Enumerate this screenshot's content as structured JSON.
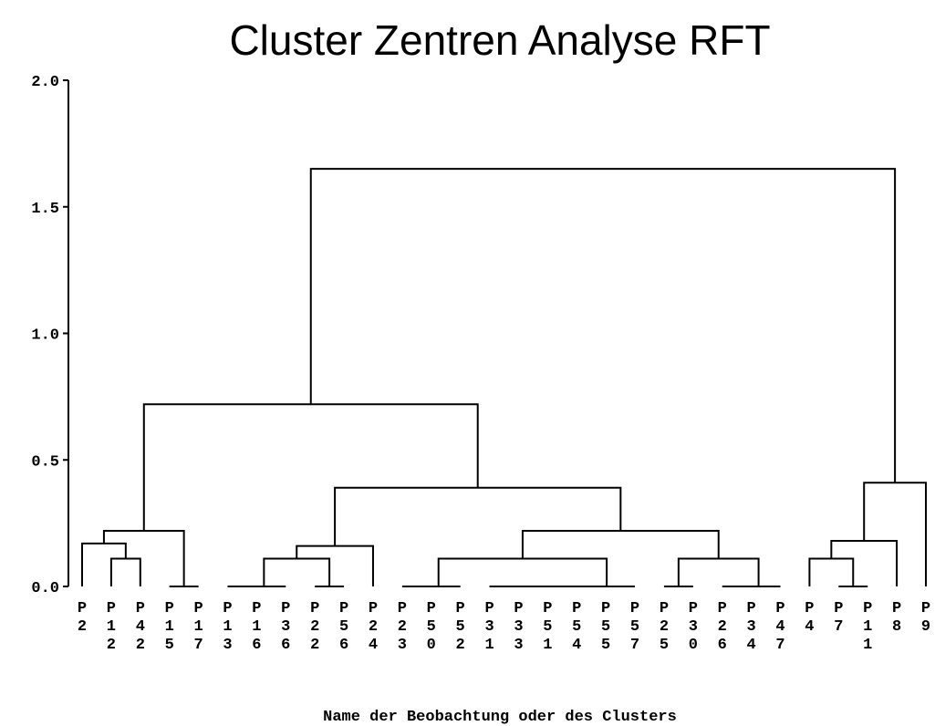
{
  "chart_data": {
    "type": "dendrogram",
    "title": "Cluster Zentren Analyse RFT",
    "x_label": "Name der Beobachtung oder des Clusters",
    "leaves": [
      "P2",
      "P12",
      "P42",
      "P15",
      "P17",
      "P13",
      "P16",
      "P36",
      "P22",
      "P56",
      "P24",
      "P23",
      "P50",
      "P52",
      "P31",
      "P33",
      "P51",
      "P54",
      "P55",
      "P57",
      "P25",
      "P30",
      "P26",
      "P34",
      "P47",
      "P4",
      "P7",
      "P11",
      "P8",
      "P9"
    ],
    "linkage": [
      {
        "children": [
          1,
          2
        ],
        "height": 0.11
      },
      {
        "children": [
          0,
          30
        ],
        "height": 0.17
      },
      {
        "children": [
          3,
          4
        ],
        "height": 0
      },
      {
        "children": [
          31,
          32
        ],
        "height": 0.22
      },
      {
        "children": [
          5,
          6
        ],
        "height": 0
      },
      {
        "children": [
          34,
          7
        ],
        "height": 0
      },
      {
        "children": [
          8,
          9
        ],
        "height": 0
      },
      {
        "children": [
          35,
          36
        ],
        "height": 0.11
      },
      {
        "children": [
          37,
          10
        ],
        "height": 0.16
      },
      {
        "children": [
          11,
          12
        ],
        "height": 0
      },
      {
        "children": [
          39,
          13
        ],
        "height": 0
      },
      {
        "children": [
          14,
          15
        ],
        "height": 0
      },
      {
        "children": [
          41,
          16
        ],
        "height": 0
      },
      {
        "children": [
          42,
          17
        ],
        "height": 0
      },
      {
        "children": [
          43,
          18
        ],
        "height": 0
      },
      {
        "children": [
          44,
          19
        ],
        "height": 0
      },
      {
        "children": [
          40,
          45
        ],
        "height": 0.11
      },
      {
        "children": [
          20,
          21
        ],
        "height": 0
      },
      {
        "children": [
          22,
          23
        ],
        "height": 0
      },
      {
        "children": [
          48,
          24
        ],
        "height": 0
      },
      {
        "children": [
          47,
          49
        ],
        "height": 0.11
      },
      {
        "children": [
          46,
          50
        ],
        "height": 0.22
      },
      {
        "children": [
          38,
          51
        ],
        "height": 0.39
      },
      {
        "children": [
          33,
          52
        ],
        "height": 0.72
      },
      {
        "children": [
          26,
          27
        ],
        "height": 0
      },
      {
        "children": [
          25,
          54
        ],
        "height": 0.11
      },
      {
        "children": [
          55,
          28
        ],
        "height": 0.18
      },
      {
        "children": [
          56,
          29
        ],
        "height": 0.41
      },
      {
        "children": [
          53,
          57
        ],
        "height": 1.65
      }
    ],
    "color": "#000000",
    "ylim": [
      0,
      2
    ],
    "yticks": [
      {
        "value": 0,
        "label": "0.0"
      },
      {
        "value": 0.5,
        "label": "0.5"
      },
      {
        "value": 1,
        "label": "1.0"
      },
      {
        "value": 1.5,
        "label": "1.5"
      },
      {
        "value": 2,
        "label": "2.0"
      }
    ]
  }
}
